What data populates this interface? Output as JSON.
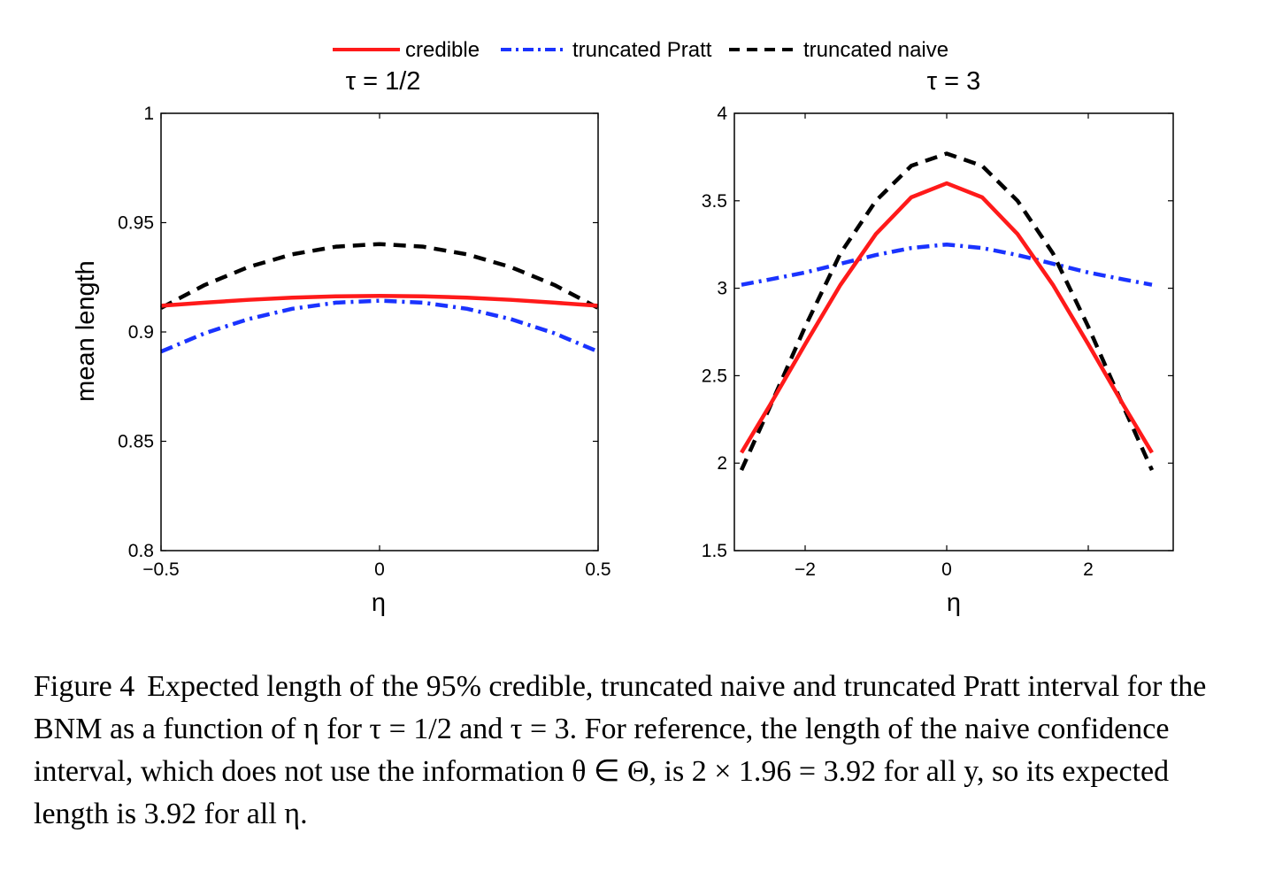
{
  "legend": {
    "items": [
      {
        "label": "credible",
        "color": "#ff1a1a",
        "style": "solid"
      },
      {
        "label": "truncated Pratt",
        "color": "#1a33ff",
        "style": "dashdot"
      },
      {
        "label": "truncated naive",
        "color": "#000000",
        "style": "dashed"
      }
    ]
  },
  "caption": {
    "label": "Figure 4",
    "text": "Expected length of the 95% credible, truncated naive and truncated Pratt interval for the BNM as a function of η for τ = 1/2 and τ = 3. For reference, the length of the naive confidence interval, which does not use the information θ ∈ Θ, is 2 × 1.96 = 3.92 for all y, so its expected length is 3.92 for all η."
  },
  "chart_data": [
    {
      "type": "line",
      "title": "τ = 1/2",
      "xlabel": "η",
      "ylabel": "mean length",
      "xlim": [
        -0.5,
        0.5
      ],
      "ylim": [
        0.8,
        1.0
      ],
      "xticks": [
        -0.5,
        0,
        0.5
      ],
      "xtick_labels": [
        "−0.5",
        "0",
        "0.5"
      ],
      "yticks": [
        0.8,
        0.85,
        0.9,
        0.95,
        1.0
      ],
      "ytick_labels": [
        "0.8",
        "0.85",
        "0.9",
        "0.95",
        "1"
      ],
      "x": [
        -0.5,
        -0.4,
        -0.3,
        -0.2,
        -0.1,
        0,
        0.1,
        0.2,
        0.3,
        0.4,
        0.5
      ],
      "series": [
        {
          "name": "credible",
          "values": [
            0.912,
            0.9134,
            0.9147,
            0.9157,
            0.9163,
            0.9165,
            0.9163,
            0.9157,
            0.9147,
            0.9134,
            0.912
          ]
        },
        {
          "name": "truncated Pratt",
          "values": [
            0.891,
            0.8994,
            0.9059,
            0.9106,
            0.9134,
            0.9143,
            0.9134,
            0.9106,
            0.9059,
            0.8994,
            0.891
          ]
        },
        {
          "name": "truncated naive",
          "values": [
            0.911,
            0.9215,
            0.9297,
            0.9355,
            0.939,
            0.9402,
            0.939,
            0.9355,
            0.9297,
            0.9215,
            0.911
          ]
        }
      ]
    },
    {
      "type": "line",
      "title": "τ = 3",
      "xlabel": "η",
      "ylabel": "",
      "xlim": [
        -3,
        3.2
      ],
      "ylim": [
        1.5,
        4.0
      ],
      "xticks": [
        -2,
        0,
        2
      ],
      "xtick_labels": [
        "−2",
        "0",
        "2"
      ],
      "yticks": [
        1.5,
        2,
        2.5,
        3,
        3.5,
        4
      ],
      "ytick_labels": [
        "1.5",
        "2",
        "2.5",
        "3",
        "3.5",
        "4"
      ],
      "x": [
        -2.9,
        -2.5,
        -2.0,
        -1.5,
        -1.0,
        -0.5,
        0,
        0.5,
        1.0,
        1.5,
        2.0,
        2.5,
        2.9
      ],
      "series": [
        {
          "name": "credible",
          "values": [
            2.06,
            2.33,
            2.68,
            3.02,
            3.31,
            3.52,
            3.6,
            3.52,
            3.31,
            3.02,
            2.68,
            2.33,
            2.06
          ]
        },
        {
          "name": "truncated Pratt",
          "values": [
            3.02,
            3.05,
            3.09,
            3.14,
            3.19,
            3.23,
            3.25,
            3.23,
            3.19,
            3.14,
            3.09,
            3.05,
            3.02
          ]
        },
        {
          "name": "truncated naive",
          "values": [
            1.96,
            2.32,
            2.78,
            3.2,
            3.5,
            3.7,
            3.77,
            3.7,
            3.5,
            3.2,
            2.78,
            2.32,
            1.96
          ]
        }
      ]
    }
  ]
}
